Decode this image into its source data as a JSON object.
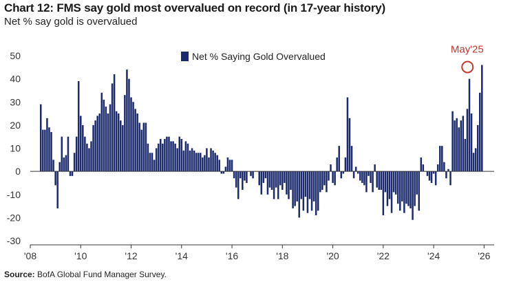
{
  "header": {
    "title": "Chart 12: FMS say gold most overvalued on record (in 17-year history)",
    "subtitle": "Net % say gold is overvalued"
  },
  "footer": {
    "source_label": "Source:",
    "source_text": "BofA Global Fund Manager Survey."
  },
  "colors": {
    "bar": "#1a2a6c",
    "annotation": "#c0392b",
    "axis": "#333333"
  },
  "chart_data": {
    "type": "bar",
    "title": "Chart 12: FMS say gold most overvalued on record (in 17-year history)",
    "ylabel": "Net % say gold is overvalued",
    "xlabel": "",
    "ylim": [
      -30,
      50
    ],
    "yticks": [
      50,
      40,
      30,
      20,
      10,
      0,
      -10,
      -20,
      -30
    ],
    "xlim": [
      2008,
      2026.4
    ],
    "xticks": [
      {
        "value": 2008,
        "label": "'08"
      },
      {
        "value": 2010,
        "label": "'10"
      },
      {
        "value": 2012,
        "label": "'12"
      },
      {
        "value": 2014,
        "label": "'14"
      },
      {
        "value": 2016,
        "label": "'16"
      },
      {
        "value": 2018,
        "label": "'18"
      },
      {
        "value": 2020,
        "label": "'20"
      },
      {
        "value": 2022,
        "label": "'22"
      },
      {
        "value": 2024,
        "label": "'24"
      },
      {
        "value": 2026,
        "label": "'26"
      }
    ],
    "legend": {
      "label": "Net % Saying Gold Overvalued",
      "position": "top-center"
    },
    "annotation": {
      "label": "May'25",
      "x": 2025.33,
      "y": 46
    },
    "series": [
      {
        "name": "Net % Saying Gold Overvalued",
        "start": "2008-06",
        "values": [
          29,
          18,
          18,
          23,
          19,
          17,
          5,
          -6,
          -16,
          4,
          15,
          6,
          7,
          15,
          -2,
          -2,
          8,
          15,
          39,
          24,
          20,
          15,
          12,
          10,
          13,
          20,
          22,
          24,
          25,
          34,
          31,
          28,
          25,
          29,
          38,
          42,
          26,
          25,
          22,
          20,
          33,
          44,
          40,
          32,
          30,
          27,
          25,
          21,
          18,
          21,
          21,
          12,
          8,
          8,
          5,
          10,
          12,
          14,
          12,
          14,
          15,
          15,
          13,
          13,
          12,
          10,
          15,
          14,
          9,
          13,
          12,
          9,
          10,
          9,
          8,
          8,
          8,
          6,
          7,
          10,
          6,
          10,
          9,
          8,
          7,
          5,
          -1,
          -1,
          2,
          6,
          5,
          5,
          -3,
          -7,
          -12,
          -3,
          -8,
          -4,
          -5,
          0,
          -2,
          -3,
          0,
          0,
          -6,
          -10,
          -5,
          -3,
          -10,
          -7,
          -8,
          -12,
          -7,
          -12,
          -6,
          -8,
          -5,
          -10,
          -12,
          -8,
          -16,
          -15,
          -13,
          -20,
          -12,
          -17,
          -11,
          -18,
          -12,
          -17,
          -13,
          -19,
          -17,
          -9,
          -8,
          -6,
          -9,
          -4,
          3,
          -5,
          -6,
          6,
          11,
          -3,
          -1,
          6,
          32,
          23,
          11,
          -3,
          2,
          -1,
          -4,
          -5,
          -6,
          -9,
          -2,
          -5,
          -9,
          3,
          -7,
          -8,
          -8,
          -19,
          -9,
          -15,
          -12,
          -18,
          -9,
          -10,
          -14,
          -17,
          -13,
          -18,
          -14,
          -15,
          -16,
          -21,
          -15,
          -10,
          -17,
          6,
          3,
          0,
          -2,
          -4,
          -5,
          -1,
          -6,
          3,
          11,
          11,
          4,
          -3,
          1,
          -6,
          26,
          22,
          23,
          19,
          22,
          24,
          14,
          27,
          40,
          25,
          8,
          10,
          20,
          34,
          46
        ]
      }
    ]
  }
}
